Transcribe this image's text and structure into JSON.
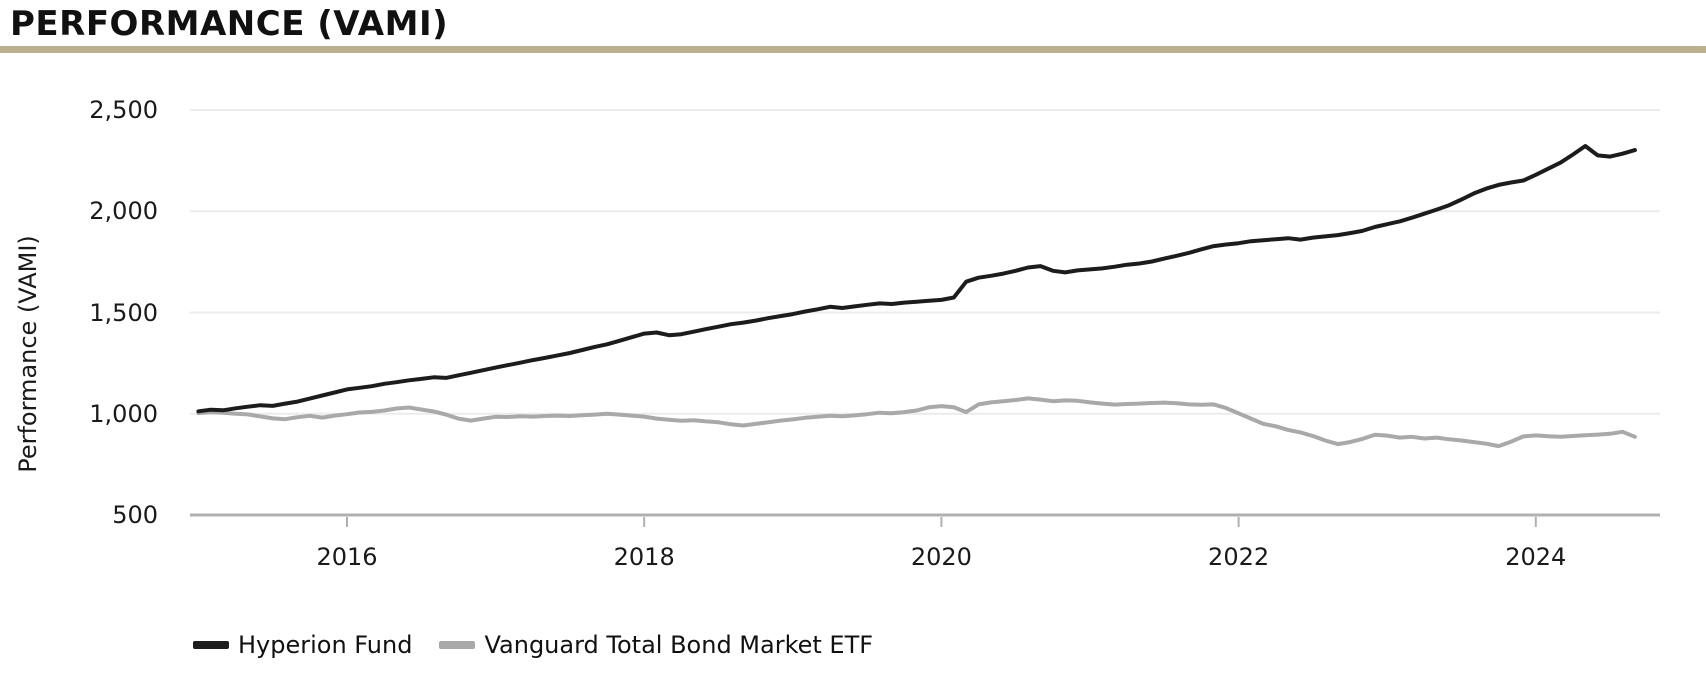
{
  "header": {
    "title": "PERFORMANCE (VAMI)",
    "rule_color": "#bdb08d"
  },
  "chart_data": {
    "type": "line",
    "title": "PERFORMANCE (VAMI)",
    "xlabel": "",
    "ylabel": "Performance (VAMI)",
    "ylim": [
      500,
      2500
    ],
    "y_ticks": [
      500,
      1000,
      1500,
      2000,
      2500
    ],
    "y_tick_labels": [
      "500",
      "1,000",
      "1,500",
      "2,000",
      "2,500"
    ],
    "x_ticks": [
      2016,
      2018,
      2020,
      2022,
      2024
    ],
    "x_tick_labels": [
      "2016",
      "2018",
      "2020",
      "2022",
      "2024"
    ],
    "x_start_year": 2015,
    "points_per_year": 12,
    "grid": "horizontal",
    "grid_color": "#ececec",
    "axis_color": "#b0b0b0",
    "text_color": "#1a1a1a",
    "legend_position": "bottom-left",
    "series": [
      {
        "name": "Hyperion Fund",
        "color": "#1c1c1c",
        "values": [
          1012,
          1020,
          1017,
          1027,
          1035,
          1042,
          1039,
          1050,
          1060,
          1075,
          1090,
          1105,
          1120,
          1128,
          1136,
          1148,
          1156,
          1165,
          1172,
          1180,
          1177,
          1190,
          1202,
          1215,
          1228,
          1240,
          1252,
          1265,
          1276,
          1288,
          1300,
          1315,
          1330,
          1343,
          1360,
          1378,
          1396,
          1401,
          1388,
          1393,
          1405,
          1418,
          1430,
          1442,
          1450,
          1460,
          1472,
          1482,
          1492,
          1505,
          1516,
          1528,
          1522,
          1530,
          1538,
          1545,
          1542,
          1549,
          1553,
          1558,
          1562,
          1574,
          1652,
          1672,
          1681,
          1692,
          1706,
          1722,
          1729,
          1706,
          1698,
          1708,
          1713,
          1718,
          1726,
          1736,
          1742,
          1752,
          1766,
          1780,
          1795,
          1812,
          1828,
          1836,
          1842,
          1852,
          1857,
          1862,
          1867,
          1860,
          1870,
          1876,
          1882,
          1892,
          1903,
          1922,
          1936,
          1950,
          1968,
          1988,
          2008,
          2030,
          2058,
          2088,
          2112,
          2130,
          2142,
          2152,
          2180,
          2210,
          2240,
          2280,
          2322,
          2276,
          2270,
          2284,
          2302
        ]
      },
      {
        "name": "Vanguard Total Bond Market ETF",
        "color": "#a9a9a9",
        "values": [
          1003,
          1008,
          1005,
          1000,
          997,
          987,
          977,
          973,
          983,
          990,
          981,
          991,
          998,
          1006,
          1009,
          1016,
          1026,
          1031,
          1021,
          1011,
          996,
          976,
          966,
          976,
          985,
          984,
          988,
          986,
          989,
          991,
          989,
          993,
          996,
          1000,
          996,
          991,
          986,
          976,
          970,
          965,
          968,
          962,
          958,
          948,
          942,
          950,
          958,
          966,
          972,
          980,
          985,
          990,
          988,
          992,
          998,
          1005,
          1002,
          1008,
          1016,
          1032,
          1038,
          1032,
          1008,
          1046,
          1056,
          1062,
          1068,
          1076,
          1070,
          1062,
          1066,
          1064,
          1056,
          1050,
          1045,
          1048,
          1050,
          1053,
          1055,
          1052,
          1046,
          1044,
          1046,
          1028,
          1002,
          976,
          950,
          938,
          920,
          908,
          890,
          868,
          850,
          860,
          876,
          896,
          892,
          882,
          886,
          878,
          882,
          874,
          868,
          860,
          852,
          840,
          862,
          888,
          893,
          889,
          886,
          890,
          894,
          897,
          901,
          911,
          886
        ]
      }
    ]
  }
}
